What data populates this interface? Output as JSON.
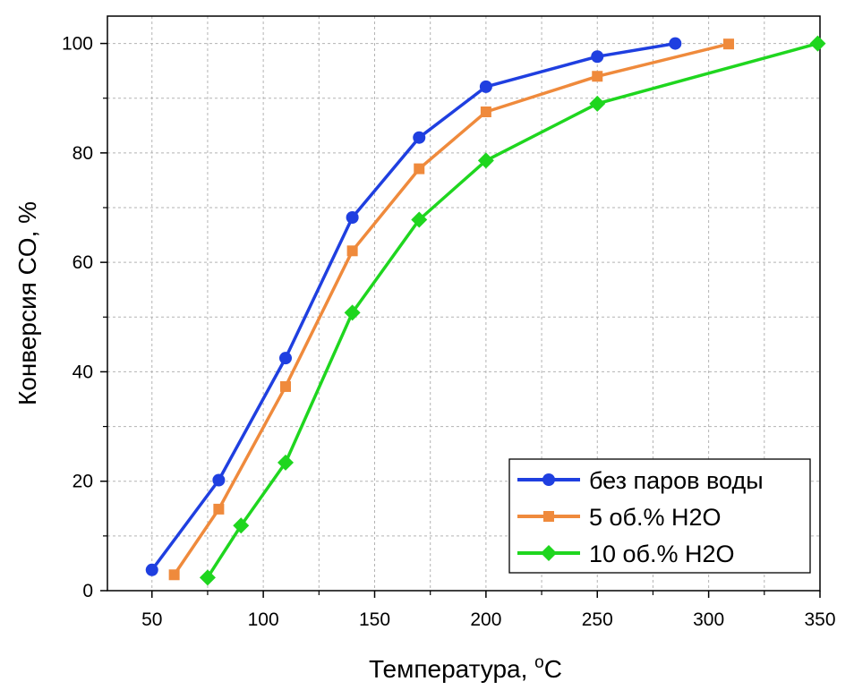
{
  "chart_data": {
    "type": "line",
    "xlabel": "Температура, ",
    "xlabel_sup": "o",
    "xlabel_unit": "C",
    "ylabel": "Конверсия CO,  %",
    "xlim": [
      30,
      350
    ],
    "ylim": [
      0,
      105
    ],
    "xticks": [
      50,
      100,
      150,
      200,
      250,
      300,
      350
    ],
    "yticks": [
      0,
      20,
      40,
      60,
      80,
      100
    ],
    "grid": true,
    "legend_position": "bottom-right",
    "series": [
      {
        "name": "без паров воды",
        "color": "#1f3fe0",
        "marker": "circle",
        "x": [
          50,
          80,
          110,
          140,
          170,
          200,
          250,
          285
        ],
        "y": [
          3.8,
          20.2,
          42.5,
          68.2,
          82.8,
          92.1,
          97.6,
          100
        ]
      },
      {
        "name": "5 об.% H2O",
        "color": "#ef8a3c",
        "marker": "square",
        "x": [
          60,
          80,
          110,
          140,
          170,
          200,
          250,
          309
        ],
        "y": [
          2.9,
          14.9,
          37.3,
          62.1,
          77.1,
          87.5,
          94.0,
          99.9
        ]
      },
      {
        "name": "10 об.% H2O",
        "color": "#1fd61f",
        "marker": "diamond",
        "x": [
          75,
          90,
          110,
          140,
          170,
          200,
          250,
          349
        ],
        "y": [
          2.4,
          11.9,
          23.4,
          50.8,
          67.8,
          78.6,
          89.0,
          100
        ]
      }
    ]
  }
}
